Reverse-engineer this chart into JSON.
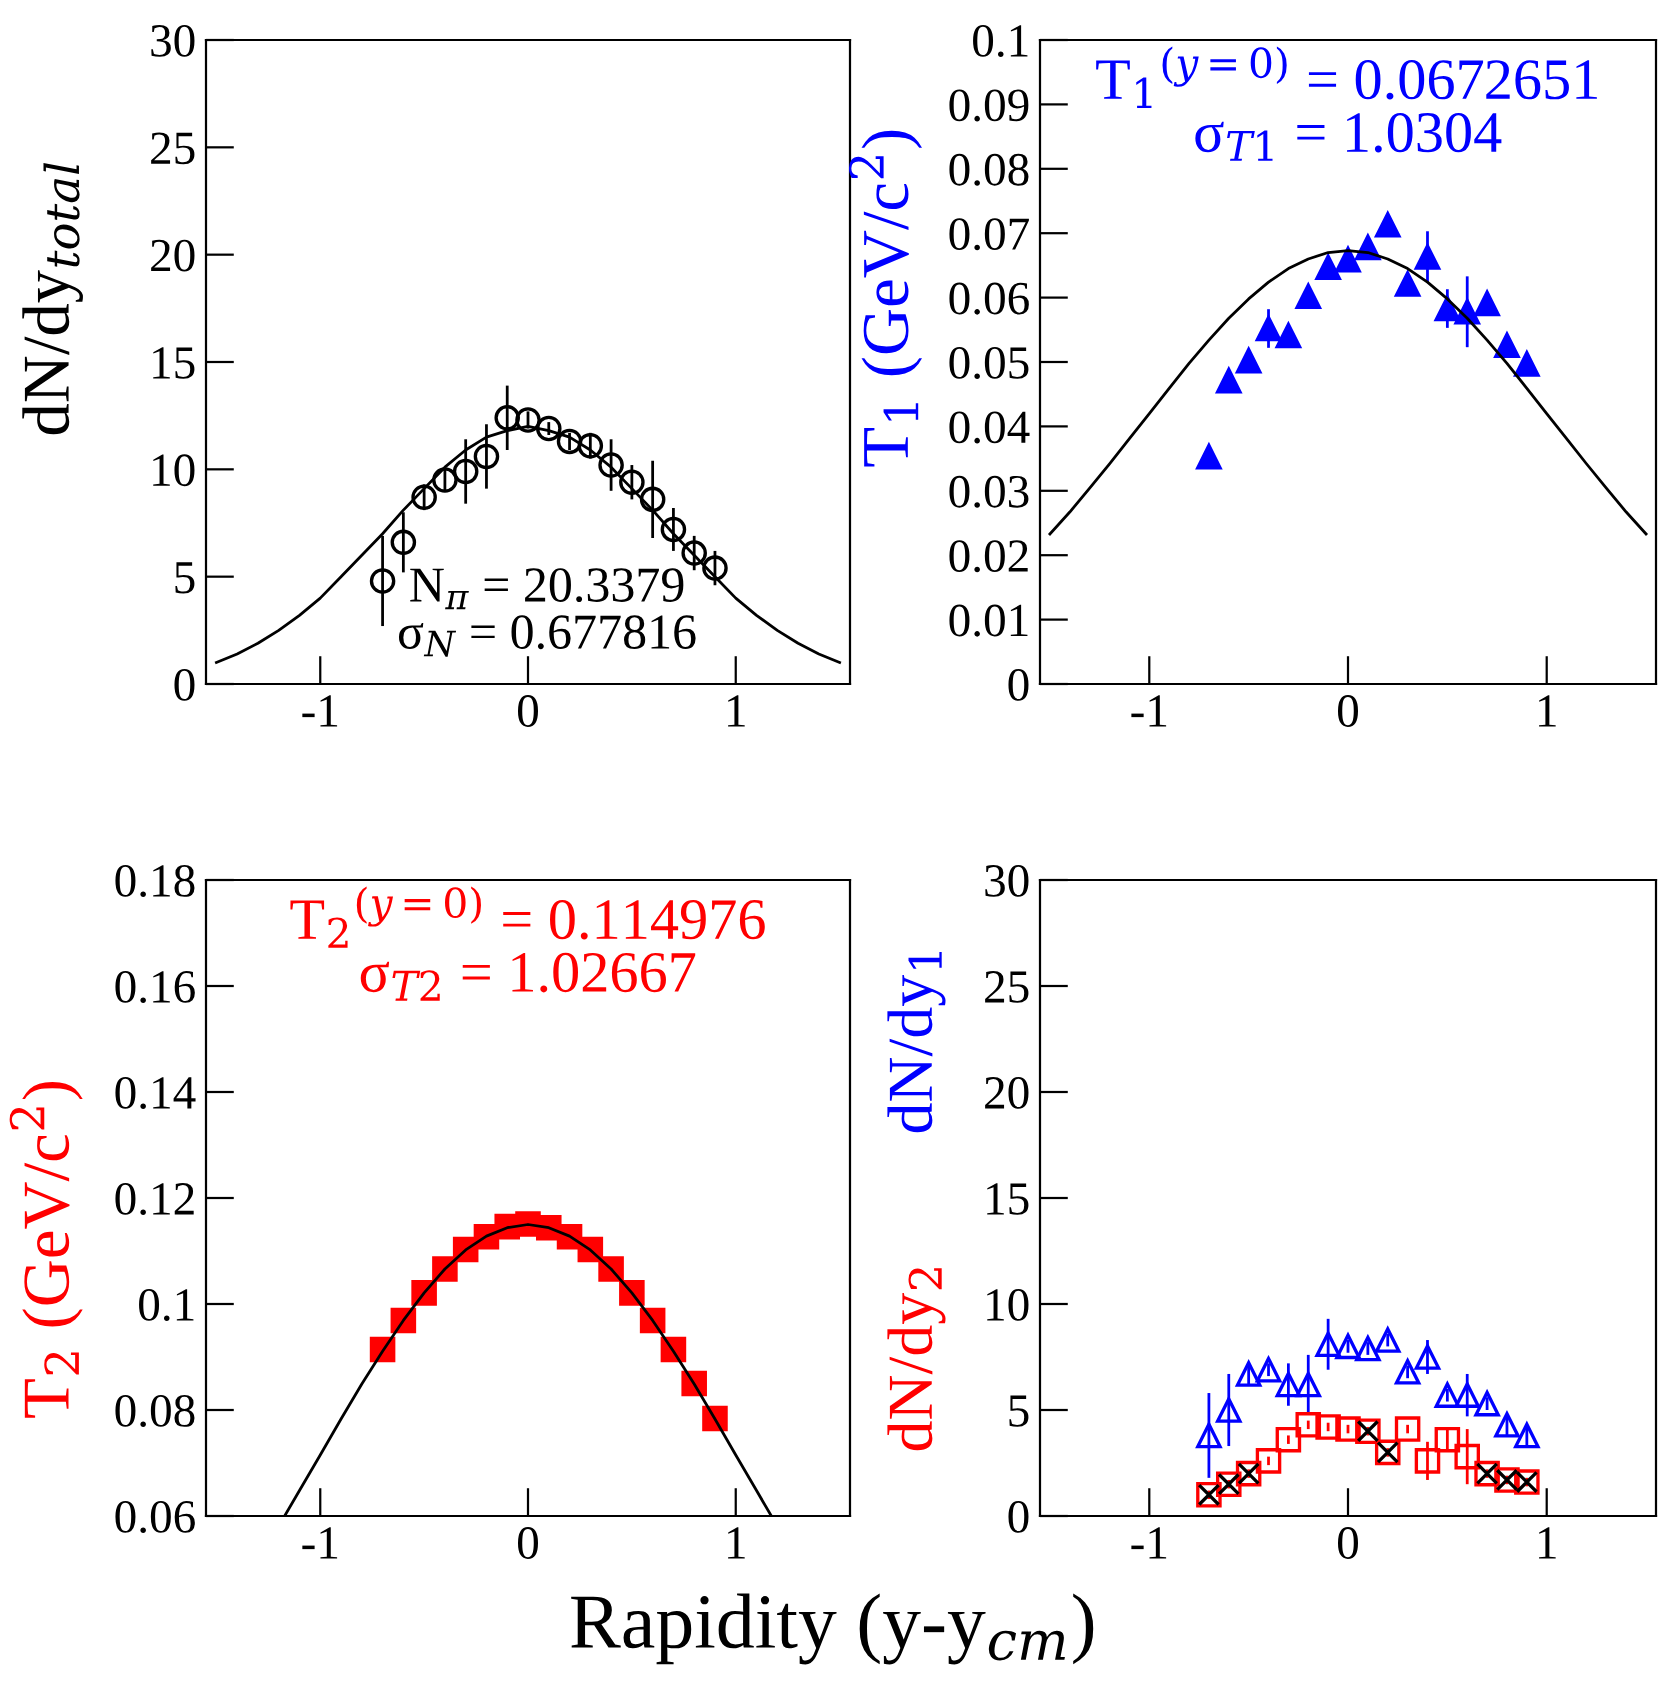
{
  "chart_data": [
    {
      "type": "scatter",
      "ylabel": "dN/dy$_{total}$",
      "xlim": [
        -1.55,
        1.55
      ],
      "xticks": [
        -1,
        0,
        1
      ],
      "ylim": [
        0,
        30
      ],
      "yticks": [
        0,
        5,
        10,
        15,
        20,
        25,
        30
      ],
      "grid": false,
      "legend": false,
      "annotations": [
        "N$_{π}$ = 20.3379",
        "σ$_{N}$ = 0.677816"
      ],
      "series": [
        {
          "color": "#000000",
          "marker": "circle",
          "x": [
            -0.7,
            -0.6,
            -0.5,
            -0.4,
            -0.3,
            -0.2,
            -0.1,
            0,
            0.1,
            0.2,
            0.3,
            0.4,
            0.5,
            0.6,
            0.7,
            0.8,
            0.9
          ],
          "values": [
            4.8,
            6.6,
            8.7,
            9.5,
            9.9,
            10.6,
            12.4,
            12.3,
            11.9,
            11.3,
            11.1,
            10.2,
            9.4,
            8.6,
            7.2,
            6.1,
            5.4
          ],
          "errors": [
            2.1,
            1.4,
            0.6,
            0.5,
            1.5,
            1.5,
            1.5,
            0.4,
            0.3,
            0.4,
            0.6,
            1.2,
            0.8,
            1.8,
            1.0,
            0.8,
            0.8
          ]
        },
        {
          "type": "line",
          "color": "#000000",
          "x": [
            -1.5,
            -1.4,
            -1.3,
            -1.2,
            -1.1,
            -1.0,
            -0.9,
            -0.8,
            -0.7,
            -0.6,
            -0.5,
            -0.4,
            -0.3,
            -0.2,
            -0.1,
            0,
            0.1,
            0.2,
            0.3,
            0.4,
            0.5,
            0.6,
            0.7,
            0.8,
            0.9,
            1.0,
            1.1,
            1.2,
            1.3,
            1.4,
            1.5
          ],
          "values": [
            1.0,
            1.4,
            1.9,
            2.5,
            3.2,
            4.0,
            5.0,
            6.0,
            7.0,
            8.1,
            9.1,
            10.1,
            10.9,
            11.5,
            11.8,
            12.0,
            11.8,
            11.5,
            10.9,
            10.1,
            9.1,
            8.1,
            7.0,
            6.0,
            5.0,
            4.0,
            3.2,
            2.5,
            1.9,
            1.4,
            1.0
          ]
        }
      ]
    },
    {
      "type": "scatter",
      "ylabel": "T$_{1}$ (GeV/c$^{2}$)",
      "xlim": [
        -1.55,
        1.55
      ],
      "xticks": [
        -1,
        0,
        1
      ],
      "ylim": [
        0,
        0.1
      ],
      "yticks": [
        0,
        0.01,
        0.02,
        0.03,
        0.04,
        0.05,
        0.06,
        0.07,
        0.08,
        0.09,
        0.1
      ],
      "grid": false,
      "legend": false,
      "annotations": [
        "T$_{1}$$^{(y=0)}$ = 0.0672651",
        "σ$_{T1}$ = 1.0304"
      ],
      "series": [
        {
          "color": "#0000ff",
          "marker": "triangle",
          "x": [
            -0.7,
            -0.6,
            -0.5,
            -0.4,
            -0.3,
            -0.2,
            -0.1,
            0,
            0.1,
            0.2,
            0.3,
            0.4,
            0.5,
            0.6,
            0.7,
            0.8,
            0.9
          ],
          "values": [
            0.0353,
            0.0471,
            0.0502,
            0.0552,
            0.0541,
            0.0602,
            0.0647,
            0.0659,
            0.0678,
            0.0713,
            0.0621,
            0.0663,
            0.0583,
            0.0578,
            0.0591,
            0.0526,
            0.0497
          ],
          "errors": [
            0.001,
            0.0008,
            0.0008,
            0.003,
            0.0008,
            0.0008,
            0.0008,
            0.0015,
            0.0008,
            0.0008,
            0.0015,
            0.004,
            0.003,
            0.0055,
            0.0008,
            0.0008,
            0.0008
          ]
        },
        {
          "type": "line",
          "color": "#000000",
          "x": [
            -1.5,
            -1.4,
            -1.3,
            -1.2,
            -1.1,
            -1.0,
            -0.9,
            -0.8,
            -0.7,
            -0.6,
            -0.5,
            -0.4,
            -0.3,
            -0.2,
            -0.1,
            0,
            0.1,
            0.2,
            0.3,
            0.4,
            0.5,
            0.6,
            0.7,
            0.8,
            0.9,
            1.0,
            1.1,
            1.2,
            1.3,
            1.4,
            1.5
          ],
          "values": [
            0.0233,
            0.0267,
            0.0304,
            0.0342,
            0.0381,
            0.042,
            0.0459,
            0.0498,
            0.0534,
            0.0568,
            0.0598,
            0.0624,
            0.0645,
            0.066,
            0.067,
            0.0673,
            0.067,
            0.066,
            0.0645,
            0.0624,
            0.0598,
            0.0568,
            0.0534,
            0.0498,
            0.0459,
            0.042,
            0.0381,
            0.0342,
            0.0304,
            0.0267,
            0.0233
          ]
        }
      ]
    },
    {
      "type": "scatter",
      "ylabel": "T$_{2}$ (GeV/c$^{2}$)",
      "xlabel": "Rapidity (y-y$_{cm}$)",
      "xlim": [
        -1.55,
        1.55
      ],
      "xticks": [
        -1,
        0,
        1
      ],
      "ylim": [
        0.06,
        0.18
      ],
      "yticks": [
        0.06,
        0.08,
        0.1,
        0.12,
        0.14,
        0.16,
        0.18
      ],
      "grid": false,
      "legend": false,
      "annotations": [
        "T$_{2}$$^{(y=0)}$ = 0.114976",
        "σ$_{T2}$ = 1.02667"
      ],
      "series": [
        {
          "color": "#ff0000",
          "marker": "square",
          "x": [
            -0.7,
            -0.6,
            -0.5,
            -0.4,
            -0.3,
            -0.2,
            -0.1,
            0,
            0.1,
            0.2,
            0.3,
            0.4,
            0.5,
            0.6,
            0.7,
            0.8,
            0.9
          ],
          "values": [
            0.0914,
            0.0969,
            0.1021,
            0.1066,
            0.1103,
            0.1127,
            0.1146,
            0.1151,
            0.1144,
            0.1127,
            0.1103,
            0.1066,
            0.1021,
            0.0969,
            0.0914,
            0.085,
            0.0784
          ]
        },
        {
          "type": "line",
          "color": "#000000",
          "x": [
            -1.17,
            -1.1,
            -1.0,
            -0.9,
            -0.8,
            -0.7,
            -0.6,
            -0.5,
            -0.4,
            -0.3,
            -0.2,
            -0.1,
            0,
            0.1,
            0.2,
            0.3,
            0.4,
            0.5,
            0.6,
            0.7,
            0.8,
            0.9,
            1.0,
            1.1,
            1.17
          ],
          "values": [
            0.0601,
            0.0648,
            0.0715,
            0.0783,
            0.0849,
            0.0911,
            0.0969,
            0.1021,
            0.1066,
            0.1102,
            0.1128,
            0.1144,
            0.115,
            0.1144,
            0.1128,
            0.1102,
            0.1066,
            0.1021,
            0.0969,
            0.0911,
            0.0849,
            0.0783,
            0.0715,
            0.0648,
            0.0601
          ]
        }
      ]
    },
    {
      "type": "scatter",
      "ylabel": "dN/dy$_{1}$",
      "y2label": "dN/dy$_{2}$",
      "xlim": [
        -1.55,
        1.55
      ],
      "xticks": [
        -1,
        0,
        1
      ],
      "ylim": [
        0,
        30
      ],
      "yticks": [
        0,
        5,
        10,
        15,
        20,
        25,
        30
      ],
      "grid": false,
      "legend": false,
      "series": [
        {
          "color": "#0000ff",
          "marker": "triangle",
          "x": [
            -0.7,
            -0.6,
            -0.5,
            -0.4,
            -0.3,
            -0.2,
            -0.1,
            0,
            0.1,
            0.2,
            0.3,
            0.4,
            0.5,
            0.6,
            0.7,
            0.8,
            0.9
          ],
          "values": [
            3.8,
            5.0,
            6.7,
            6.9,
            6.2,
            6.2,
            8.1,
            8.0,
            7.9,
            8.3,
            6.8,
            7.5,
            5.7,
            5.7,
            5.3,
            4.3,
            3.8
          ],
          "errors": [
            2.0,
            1.7,
            0.5,
            0.3,
            1.0,
            1.4,
            1.2,
            0.3,
            0.3,
            0.3,
            0.3,
            0.8,
            0.3,
            1.0,
            0.3,
            0.5,
            0.5
          ]
        },
        {
          "color": "#ff0000",
          "marker": "square",
          "x": [
            -0.7,
            -0.6,
            -0.5,
            -0.4,
            -0.3,
            -0.2,
            -0.1,
            0,
            0.1,
            0.2,
            0.3,
            0.4,
            0.5,
            0.6,
            0.7,
            0.8,
            0.9
          ],
          "values": [
            1.0,
            1.5,
            2.0,
            2.6,
            3.6,
            4.3,
            4.2,
            4.1,
            4.0,
            3.0,
            4.1,
            2.6,
            3.6,
            2.8,
            2.0,
            1.7,
            1.6
          ],
          "errors": [
            0.2,
            0.2,
            0.2,
            0.2,
            0.2,
            0.2,
            0.2,
            0.2,
            0.2,
            0.2,
            0.2,
            0.9,
            0.5,
            1.3,
            0.2,
            0.2,
            0.2
          ]
        },
        {
          "color": "#000000",
          "marker": "cross",
          "x": [
            -0.7,
            -0.6,
            -0.5,
            0.1,
            0.2,
            0.7,
            0.8,
            0.9
          ],
          "values": [
            1.0,
            1.5,
            2.0,
            4.0,
            3.0,
            2.0,
            1.7,
            1.6
          ]
        }
      ]
    }
  ]
}
